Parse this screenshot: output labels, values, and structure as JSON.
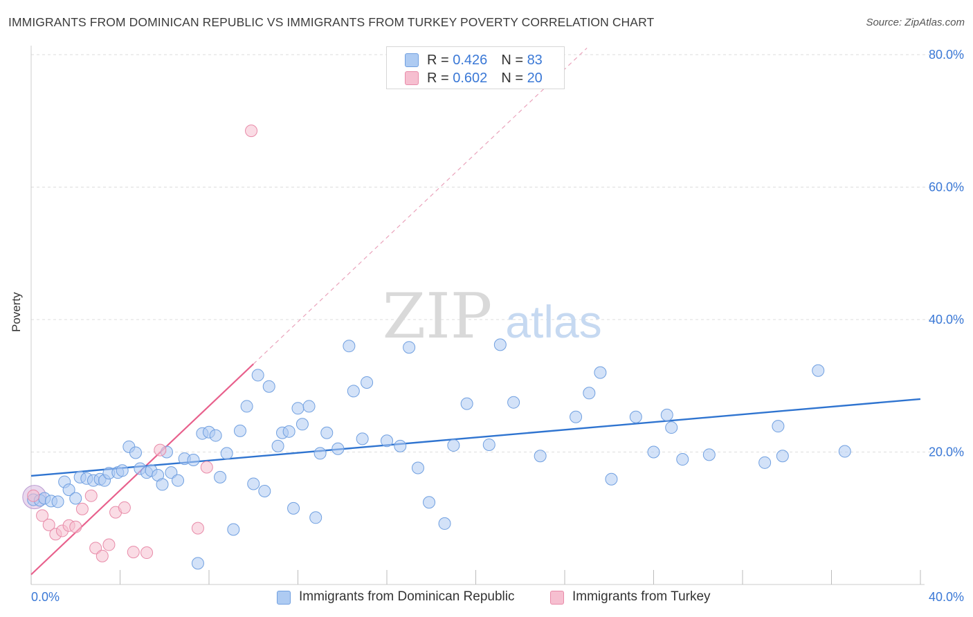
{
  "title": "IMMIGRANTS FROM DOMINICAN REPUBLIC VS IMMIGRANTS FROM TURKEY POVERTY CORRELATION CHART",
  "source": "Source: ZipAtlas.com",
  "watermark": {
    "zip": "ZIP",
    "atlas": "atlas"
  },
  "legend_top": [
    {
      "r_label": "R = ",
      "r_value": "0.426",
      "n_label": "N = ",
      "n_value": "83"
    },
    {
      "r_label": "R = ",
      "r_value": "0.602",
      "n_label": "N = ",
      "n_value": "20"
    }
  ],
  "legend_bottom": [
    {
      "label": "Immigrants from Dominican Republic"
    },
    {
      "label": "Immigrants from Turkey"
    }
  ],
  "colors": {
    "blue_fill": "#aecbf2",
    "blue_stroke": "#6f9fe0",
    "blue_line": "#2f74d0",
    "pink_fill": "#f6bfd0",
    "pink_stroke": "#e88aa8",
    "pink_line": "#e8608c",
    "tick_label": "#3a78d6",
    "grid": "#dddddd"
  },
  "chart_data": {
    "type": "scatter",
    "title": "IMMIGRANTS FROM DOMINICAN REPUBLIC VS IMMIGRANTS FROM TURKEY POVERTY CORRELATION CHART",
    "xlabel": "",
    "ylabel": "Poverty",
    "xlim": [
      0,
      40
    ],
    "ylim": [
      0,
      80
    ],
    "x_tick_labels": [
      "0.0%",
      "40.0%"
    ],
    "y_ticks": [
      20,
      40,
      60,
      80
    ],
    "y_tick_labels": [
      "20.0%",
      "40.0%",
      "60.0%",
      "80.0%"
    ],
    "grid": true,
    "legend_position": "bottom",
    "series": [
      {
        "name": "Immigrants from Dominican Republic",
        "color": "#aecbf2",
        "r": 0.426,
        "n": 83,
        "trend": {
          "x": [
            0,
            40
          ],
          "y": [
            16.4,
            28.0
          ],
          "style": "solid"
        },
        "points": [
          [
            0.1,
            12.8
          ],
          [
            0.4,
            12.7
          ],
          [
            0.6,
            13.0
          ],
          [
            0.9,
            12.6
          ],
          [
            1.2,
            12.5
          ],
          [
            1.5,
            15.5
          ],
          [
            1.7,
            14.3
          ],
          [
            2.0,
            13.0
          ],
          [
            2.2,
            16.2
          ],
          [
            2.5,
            16.0
          ],
          [
            2.8,
            15.7
          ],
          [
            3.1,
            15.9
          ],
          [
            3.3,
            15.7
          ],
          [
            3.5,
            16.8
          ],
          [
            3.9,
            16.9
          ],
          [
            4.1,
            17.2
          ],
          [
            4.4,
            20.8
          ],
          [
            4.7,
            19.9
          ],
          [
            4.9,
            17.5
          ],
          [
            5.2,
            16.9
          ],
          [
            5.4,
            17.2
          ],
          [
            5.7,
            16.5
          ],
          [
            5.9,
            15.1
          ],
          [
            6.1,
            20.0
          ],
          [
            6.3,
            16.9
          ],
          [
            6.6,
            15.7
          ],
          [
            6.9,
            19.0
          ],
          [
            7.3,
            18.8
          ],
          [
            7.5,
            3.2
          ],
          [
            7.7,
            22.8
          ],
          [
            8.0,
            23.0
          ],
          [
            8.3,
            22.5
          ],
          [
            8.5,
            16.2
          ],
          [
            8.8,
            19.8
          ],
          [
            9.1,
            8.3
          ],
          [
            9.4,
            23.2
          ],
          [
            9.7,
            26.9
          ],
          [
            10.0,
            15.2
          ],
          [
            10.2,
            31.6
          ],
          [
            10.5,
            14.1
          ],
          [
            10.7,
            29.9
          ],
          [
            11.1,
            20.9
          ],
          [
            11.3,
            22.9
          ],
          [
            11.6,
            23.1
          ],
          [
            11.8,
            11.5
          ],
          [
            12.0,
            26.6
          ],
          [
            12.2,
            24.2
          ],
          [
            12.5,
            26.9
          ],
          [
            12.8,
            10.1
          ],
          [
            13.0,
            19.8
          ],
          [
            13.3,
            22.9
          ],
          [
            13.8,
            20.5
          ],
          [
            14.3,
            36.0
          ],
          [
            14.5,
            29.2
          ],
          [
            14.9,
            22.0
          ],
          [
            15.1,
            30.5
          ],
          [
            16.0,
            21.7
          ],
          [
            16.6,
            20.9
          ],
          [
            17.0,
            35.8
          ],
          [
            17.4,
            17.6
          ],
          [
            17.9,
            12.4
          ],
          [
            18.6,
            9.2
          ],
          [
            19.0,
            21.0
          ],
          [
            19.6,
            27.3
          ],
          [
            20.6,
            21.1
          ],
          [
            21.1,
            36.2
          ],
          [
            21.7,
            27.5
          ],
          [
            22.9,
            19.4
          ],
          [
            24.5,
            25.3
          ],
          [
            25.1,
            28.9
          ],
          [
            25.6,
            32.0
          ],
          [
            26.1,
            15.9
          ],
          [
            27.2,
            25.3
          ],
          [
            28.0,
            20.0
          ],
          [
            28.6,
            25.6
          ],
          [
            28.8,
            23.7
          ],
          [
            29.3,
            18.9
          ],
          [
            30.5,
            19.6
          ],
          [
            33.0,
            18.4
          ],
          [
            33.6,
            23.9
          ],
          [
            33.8,
            19.4
          ],
          [
            35.4,
            32.3
          ],
          [
            36.6,
            20.1
          ]
        ]
      },
      {
        "name": "Immigrants from Turkey",
        "color": "#f6bfd0",
        "r": 0.602,
        "n": 20,
        "trend": {
          "x": [
            0,
            25
          ],
          "y": [
            1.5,
            81.0
          ],
          "solid_until_x": 10.0,
          "style": "solid-then-dashed"
        },
        "points": [
          [
            0.1,
            13.4
          ],
          [
            0.5,
            10.4
          ],
          [
            0.8,
            9.0
          ],
          [
            1.1,
            7.6
          ],
          [
            1.4,
            8.1
          ],
          [
            1.7,
            8.9
          ],
          [
            2.0,
            8.7
          ],
          [
            2.3,
            11.4
          ],
          [
            2.7,
            13.4
          ],
          [
            2.9,
            5.5
          ],
          [
            3.2,
            4.3
          ],
          [
            3.5,
            6.0
          ],
          [
            3.8,
            10.9
          ],
          [
            4.2,
            11.6
          ],
          [
            4.6,
            4.9
          ],
          [
            5.2,
            4.8
          ],
          [
            5.8,
            20.3
          ],
          [
            7.5,
            8.5
          ],
          [
            7.9,
            17.7
          ],
          [
            9.9,
            68.5
          ]
        ]
      }
    ]
  }
}
